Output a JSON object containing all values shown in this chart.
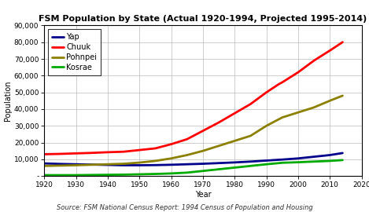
{
  "title": "FSM Population by State (Actual 1920-1994, Projected 1995-2014)",
  "xlabel": "Year",
  "ylabel": "Population",
  "source": "Source: FSM National Census Report: 1994 Census of Population and Housing",
  "ylim": [
    0,
    90000
  ],
  "xlim": [
    1920,
    2020
  ],
  "yticks": [
    0,
    10000,
    20000,
    30000,
    40000,
    50000,
    60000,
    70000,
    80000,
    90000
  ],
  "ytick_labels": [
    "-",
    "10,000",
    "20,000",
    "30,000",
    "40,000",
    "50,000",
    "60,000",
    "70,000",
    "80,000",
    "90,000"
  ],
  "xticks": [
    1920,
    1930,
    1940,
    1950,
    1960,
    1970,
    1980,
    1990,
    2000,
    2010,
    2020
  ],
  "series": {
    "Yap": {
      "color": "#00008B",
      "years": [
        1920,
        1925,
        1930,
        1935,
        1940,
        1945,
        1950,
        1955,
        1960,
        1965,
        1970,
        1975,
        1980,
        1985,
        1990,
        1994,
        1995,
        2000,
        2005,
        2010,
        2014
      ],
      "values": [
        7500,
        7200,
        7000,
        6800,
        6600,
        6400,
        6400,
        6500,
        6700,
        7000,
        7300,
        7700,
        8100,
        8600,
        9200,
        9700,
        9800,
        10500,
        11500,
        12500,
        13700
      ]
    },
    "Chuuk": {
      "color": "#FF0000",
      "years": [
        1920,
        1925,
        1930,
        1935,
        1940,
        1945,
        1950,
        1955,
        1960,
        1965,
        1970,
        1975,
        1980,
        1985,
        1990,
        1994,
        1995,
        2000,
        2005,
        2010,
        2014
      ],
      "values": [
        13000,
        13200,
        13500,
        13800,
        14200,
        14500,
        15500,
        16500,
        19000,
        22000,
        27000,
        32000,
        37500,
        43000,
        50000,
        55000,
        56000,
        62000,
        69000,
        75000,
        80000
      ]
    },
    "Pohnpei": {
      "color": "#8B8000",
      "years": [
        1920,
        1925,
        1930,
        1935,
        1940,
        1945,
        1950,
        1955,
        1960,
        1965,
        1970,
        1975,
        1980,
        1985,
        1990,
        1994,
        1995,
        2000,
        2005,
        2010,
        2014
      ],
      "values": [
        6000,
        6200,
        6400,
        6700,
        7000,
        7300,
        8000,
        9000,
        10500,
        12500,
        15000,
        18000,
        21000,
        24000,
        30000,
        34000,
        35000,
        38000,
        41000,
        45000,
        48000
      ]
    },
    "Kosrae": {
      "color": "#00AA00",
      "years": [
        1920,
        1925,
        1930,
        1935,
        1940,
        1945,
        1950,
        1955,
        1960,
        1965,
        1970,
        1975,
        1980,
        1985,
        1990,
        1994,
        1995,
        2000,
        2005,
        2010,
        2014
      ],
      "values": [
        500,
        500,
        500,
        600,
        700,
        800,
        1000,
        1200,
        1500,
        2000,
        3000,
        4000,
        5000,
        6000,
        7000,
        7700,
        7900,
        8200,
        8600,
        9000,
        9500
      ]
    }
  },
  "legend_order": [
    "Yap",
    "Chuuk",
    "Pohnpei",
    "Kosrae"
  ],
  "line_width": 2.0,
  "background_color": "#ffffff",
  "grid_color": "#bbbbbb",
  "title_fontsize": 8,
  "axis_fontsize": 7,
  "tick_fontsize": 6.5,
  "source_fontsize": 6,
  "legend_fontsize": 7
}
